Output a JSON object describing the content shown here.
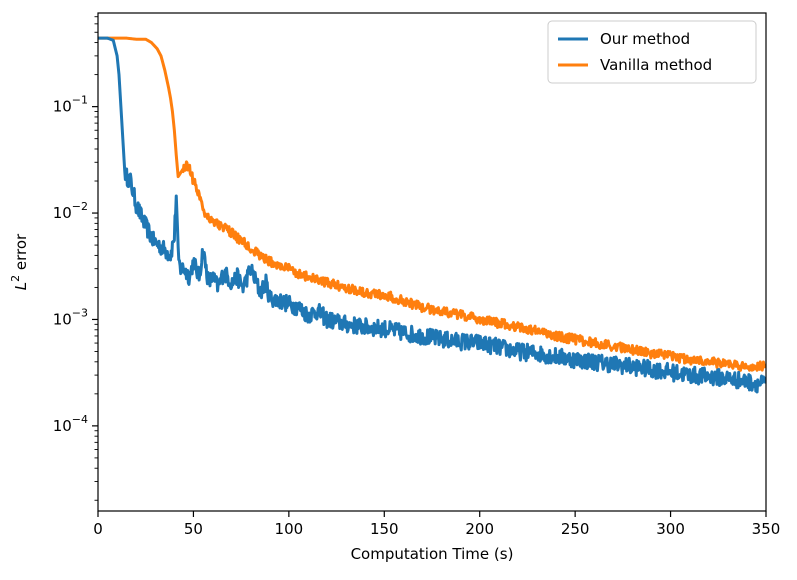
{
  "chart_data": {
    "type": "line",
    "title": "",
    "xlabel": "Computation Time (s)",
    "ylabel_base": "L",
    "ylabel_sup": "2",
    "ylabel_rest": " error",
    "xlim": [
      0,
      350
    ],
    "ylim_log10": [
      -4.8,
      -0.12
    ],
    "x_ticks": [
      0,
      50,
      100,
      150,
      200,
      250,
      300,
      350
    ],
    "x_tick_labels": [
      "0",
      "50",
      "100",
      "150",
      "200",
      "250",
      "300",
      "350"
    ],
    "y_ticks_log10": [
      -1,
      -2,
      -3,
      -4
    ],
    "y_tick_labels": [
      {
        "base": "10",
        "exp": "−1"
      },
      {
        "base": "10",
        "exp": "−2"
      },
      {
        "base": "10",
        "exp": "−3"
      },
      {
        "base": "10",
        "exp": "−4"
      }
    ],
    "legend_position": "top-right",
    "grid": false,
    "series": [
      {
        "name": "Our method",
        "color": "#1f77b4",
        "x": [
          0,
          5,
          8,
          10,
          11,
          12,
          13,
          14,
          15,
          17,
          20,
          23,
          26,
          29,
          32,
          35,
          38,
          40,
          41,
          42,
          43,
          45,
          48,
          50,
          53,
          55,
          58,
          60,
          63,
          66,
          70,
          73,
          76,
          80,
          85,
          88,
          90,
          95,
          100,
          105,
          110,
          115,
          120,
          125,
          130,
          140,
          150,
          160,
          170,
          180,
          190,
          200,
          210,
          220,
          230,
          240,
          250,
          260,
          270,
          280,
          290,
          300,
          310,
          320,
          330,
          340,
          345,
          350
        ],
        "y": [
          0.44,
          0.44,
          0.42,
          0.3,
          0.2,
          0.1,
          0.05,
          0.025,
          0.022,
          0.02,
          0.012,
          0.009,
          0.007,
          0.0055,
          0.005,
          0.0045,
          0.004,
          0.006,
          0.015,
          0.004,
          0.003,
          0.003,
          0.0025,
          0.0035,
          0.0025,
          0.0045,
          0.0022,
          0.0025,
          0.002,
          0.0028,
          0.0022,
          0.0025,
          0.002,
          0.003,
          0.0018,
          0.0022,
          0.0016,
          0.0015,
          0.0014,
          0.0013,
          0.0011,
          0.0012,
          0.001,
          0.00095,
          0.0009,
          0.00085,
          0.00082,
          0.00075,
          0.0007,
          0.00065,
          0.00062,
          0.0006,
          0.00055,
          0.0005,
          0.00048,
          0.00045,
          0.00042,
          0.0004,
          0.00038,
          0.00036,
          0.00034,
          0.00032,
          0.0003,
          0.00029,
          0.00028,
          0.00026,
          0.00025,
          0.00025
        ]
      },
      {
        "name": "Vanilla method",
        "color": "#ff7f0e",
        "x": [
          0,
          10,
          15,
          20,
          25,
          28,
          31,
          33,
          35,
          37,
          38,
          39,
          40,
          41,
          42,
          44,
          46,
          48,
          50,
          53,
          56,
          60,
          65,
          70,
          75,
          80,
          85,
          90,
          95,
          100,
          105,
          110,
          120,
          130,
          140,
          150,
          160,
          170,
          180,
          190,
          200,
          210,
          220,
          230,
          240,
          250,
          260,
          270,
          280,
          290,
          300,
          310,
          320,
          330,
          340,
          345,
          350
        ],
        "y": [
          0.44,
          0.44,
          0.44,
          0.43,
          0.43,
          0.4,
          0.35,
          0.3,
          0.22,
          0.15,
          0.12,
          0.09,
          0.06,
          0.035,
          0.022,
          0.025,
          0.028,
          0.027,
          0.02,
          0.015,
          0.01,
          0.0085,
          0.0075,
          0.0065,
          0.0055,
          0.0047,
          0.004,
          0.0035,
          0.0032,
          0.003,
          0.0027,
          0.0025,
          0.0022,
          0.002,
          0.0018,
          0.0017,
          0.0015,
          0.0013,
          0.0012,
          0.0011,
          0.001,
          0.00092,
          0.00085,
          0.00078,
          0.0007,
          0.00065,
          0.0006,
          0.00056,
          0.00052,
          0.00048,
          0.00045,
          0.00042,
          0.0004,
          0.00038,
          0.00036,
          0.00035,
          0.00038
        ]
      }
    ]
  }
}
